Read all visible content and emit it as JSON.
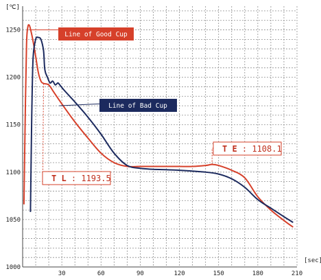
{
  "chart_data": {
    "type": "line",
    "ylabel": "[℃]",
    "xlabel": "[sec]",
    "xlim": [
      0,
      210
    ],
    "ylim": [
      1000,
      1275
    ],
    "xticks": [
      30,
      60,
      90,
      120,
      150,
      180,
      210
    ],
    "yticks": [
      1000,
      1050,
      1100,
      1150,
      1200,
      1250
    ],
    "grid": true,
    "colors": {
      "good": "#d6402a",
      "bad": "#1c2a5e",
      "grid": "#8e8e8e"
    },
    "series": [
      {
        "name": "Line of Good Cup",
        "key": "good",
        "points": [
          [
            1,
            1066
          ],
          [
            2,
            1160
          ],
          [
            3,
            1235
          ],
          [
            4,
            1253
          ],
          [
            5,
            1255
          ],
          [
            6,
            1251
          ],
          [
            8,
            1238
          ],
          [
            10,
            1222
          ],
          [
            12,
            1205
          ],
          [
            14,
            1196
          ],
          [
            16,
            1193.5
          ],
          [
            20,
            1192
          ],
          [
            24,
            1184
          ],
          [
            30,
            1172
          ],
          [
            40,
            1153
          ],
          [
            50,
            1136
          ],
          [
            60,
            1120
          ],
          [
            70,
            1110
          ],
          [
            80,
            1106
          ],
          [
            90,
            1106
          ],
          [
            100,
            1106
          ],
          [
            110,
            1106
          ],
          [
            120,
            1106
          ],
          [
            130,
            1106
          ],
          [
            140,
            1107
          ],
          [
            145,
            1108.1
          ],
          [
            150,
            1107
          ],
          [
            160,
            1102
          ],
          [
            170,
            1094
          ],
          [
            180,
            1074
          ],
          [
            190,
            1060
          ],
          [
            200,
            1049
          ],
          [
            207,
            1042
          ]
        ]
      },
      {
        "name": "Line of Bad Cup",
        "key": "bad",
        "points": [
          [
            6,
            1058
          ],
          [
            7,
            1160
          ],
          [
            8,
            1220
          ],
          [
            10,
            1240
          ],
          [
            12,
            1242
          ],
          [
            14,
            1240
          ],
          [
            16,
            1228
          ],
          [
            17,
            1208
          ],
          [
            19,
            1200
          ],
          [
            21,
            1194
          ],
          [
            23,
            1196
          ],
          [
            25,
            1192
          ],
          [
            27,
            1194
          ],
          [
            29,
            1191
          ],
          [
            32,
            1186
          ],
          [
            40,
            1174
          ],
          [
            50,
            1158
          ],
          [
            60,
            1140
          ],
          [
            70,
            1120
          ],
          [
            80,
            1107
          ],
          [
            90,
            1104
          ],
          [
            100,
            1103
          ],
          [
            120,
            1102
          ],
          [
            140,
            1100
          ],
          [
            150,
            1098
          ],
          [
            160,
            1093
          ],
          [
            170,
            1084
          ],
          [
            180,
            1071
          ],
          [
            190,
            1062
          ],
          [
            200,
            1053
          ],
          [
            207,
            1047
          ]
        ]
      }
    ],
    "legend_labels": {
      "good": "Line of Good Cup",
      "bad": "Line of Bad Cup"
    },
    "annotations": [
      {
        "id": "tl",
        "series": "good",
        "label": "T L",
        "value": "1193.5",
        "x": 16,
        "y": 1193.5
      },
      {
        "id": "te",
        "series": "good",
        "label": "T E",
        "value": "1108.1",
        "x": 145,
        "y": 1108.1
      }
    ]
  }
}
